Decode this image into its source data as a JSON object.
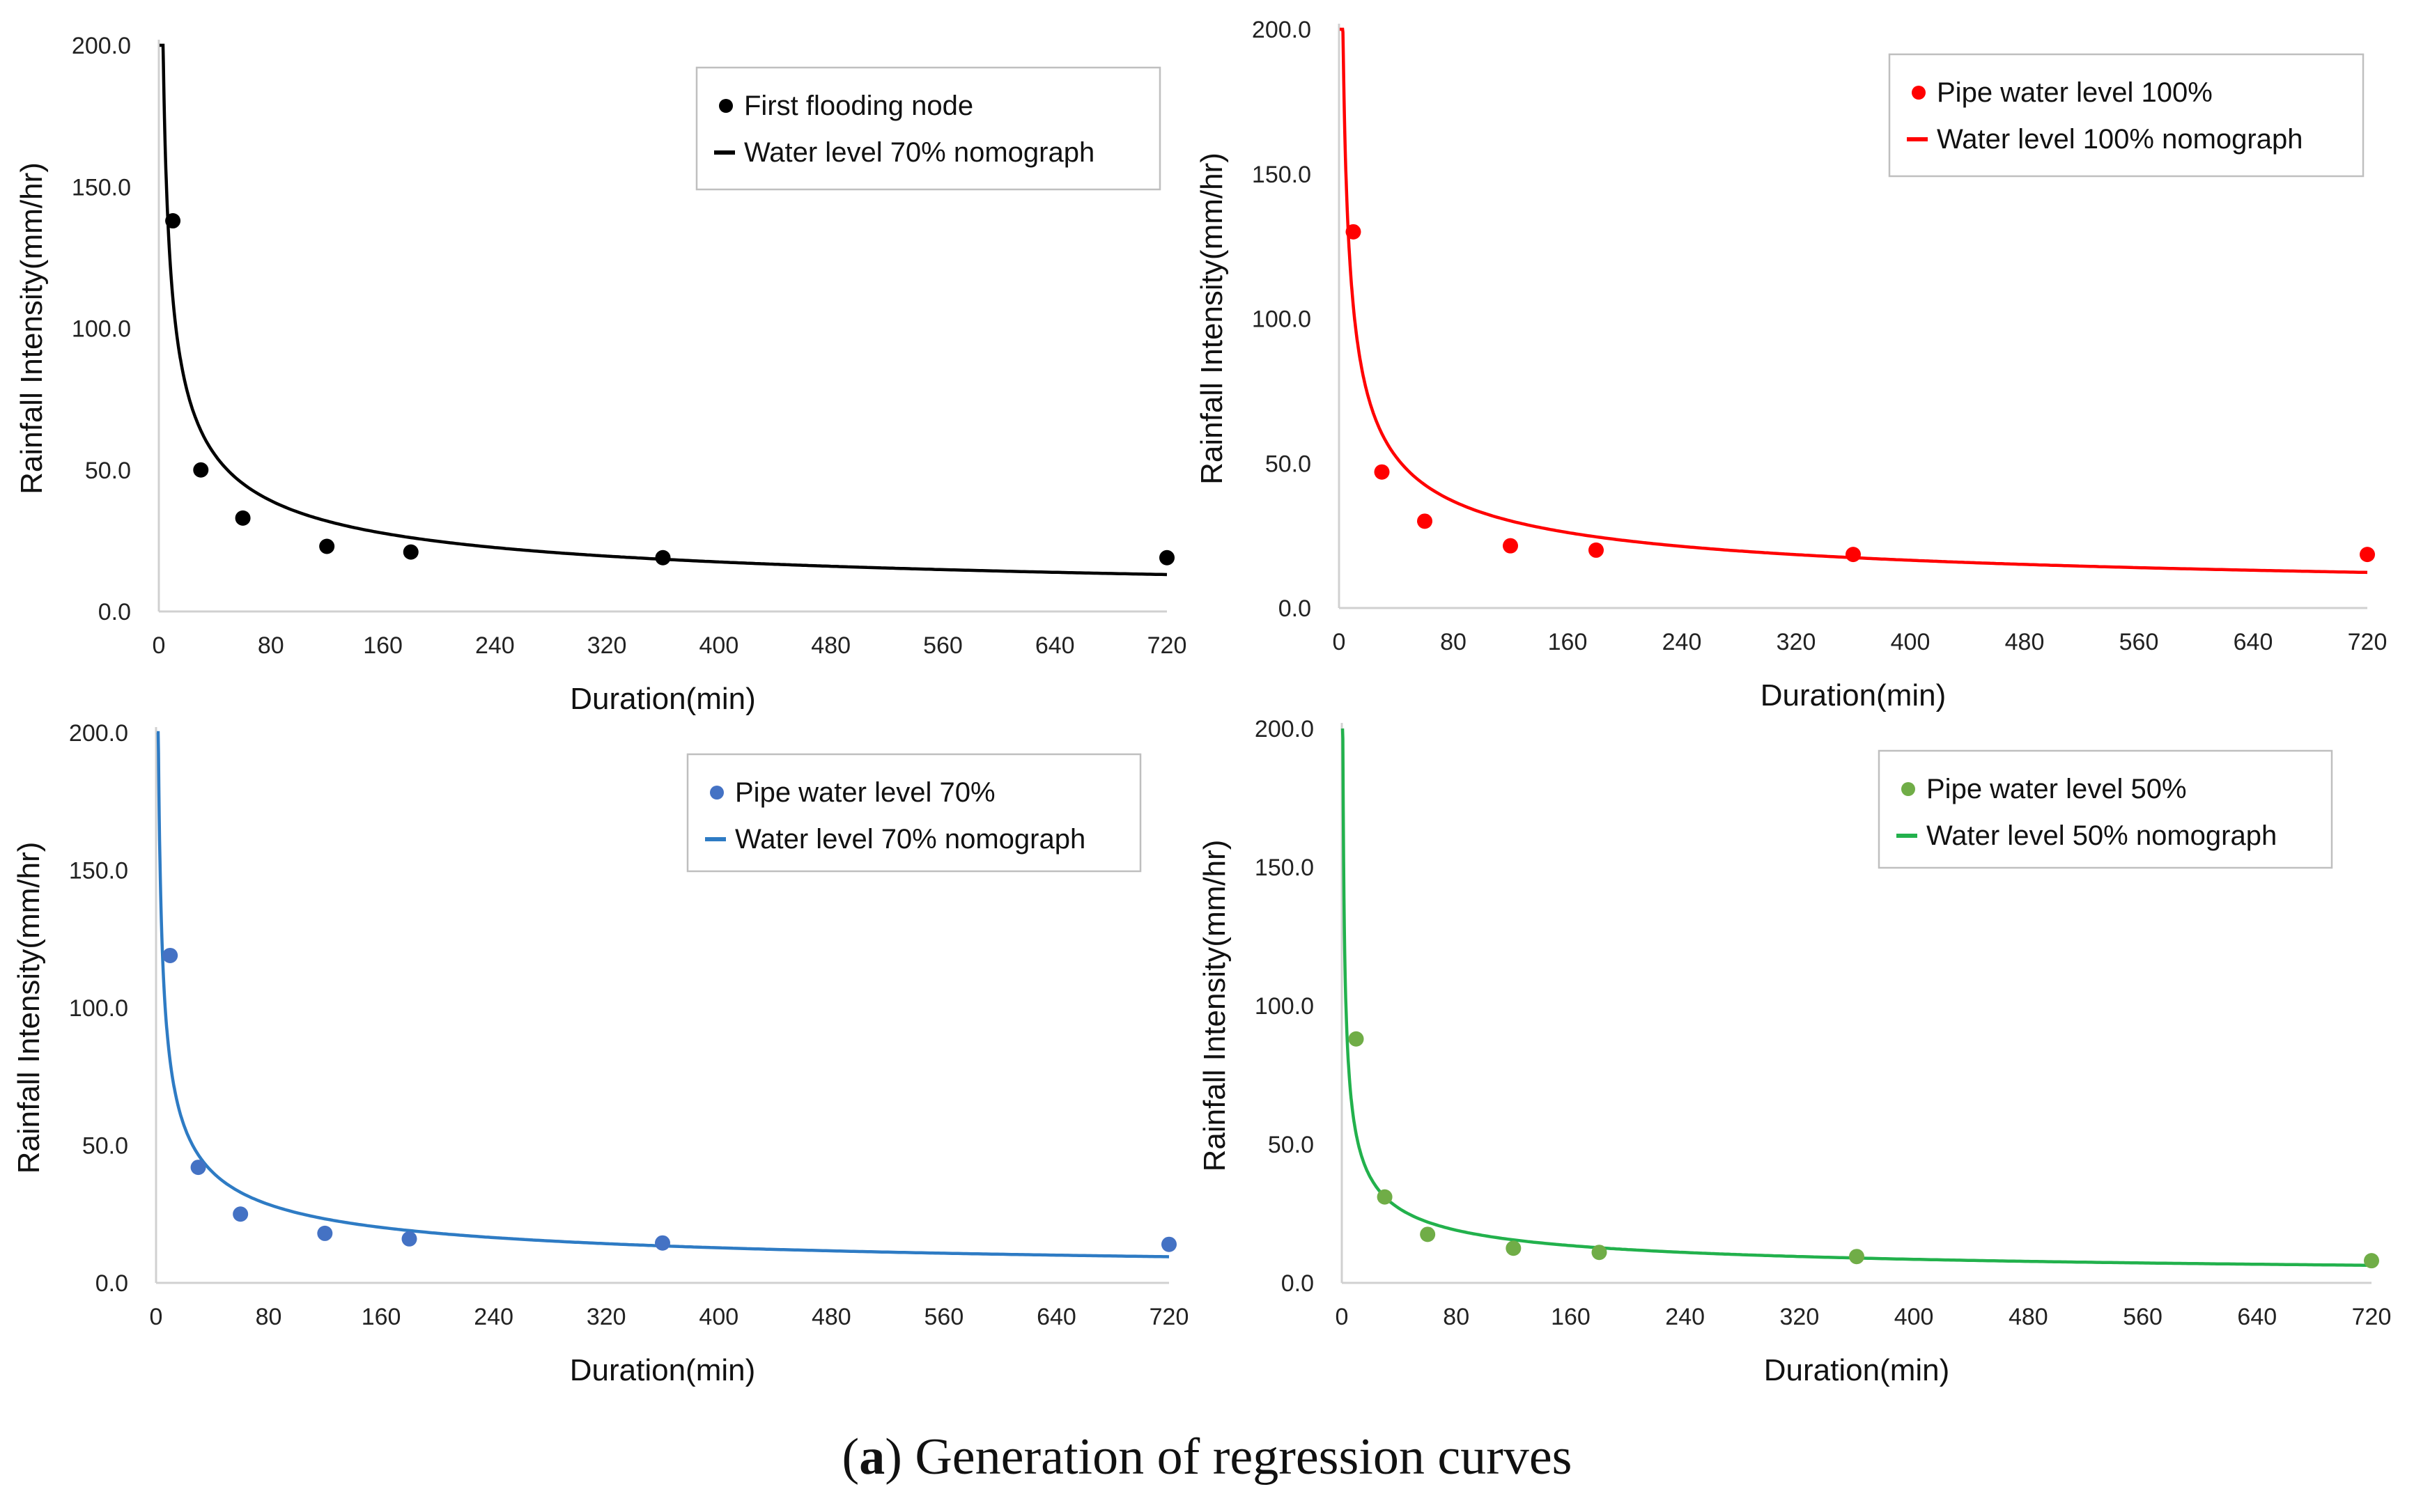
{
  "figure": {
    "caption_prefix": "(",
    "caption_letter": "a",
    "caption_suffix": ") Generation of regression curves"
  },
  "chart_data": [
    {
      "type": "scatter+line",
      "color": "#000000",
      "xlabel": "Duration(min)",
      "ylabel": "Rainfall Intensity(mm/hr)",
      "xlim": [
        0,
        720
      ],
      "ylim": [
        0,
        200
      ],
      "xticks": [
        0,
        80,
        160,
        240,
        320,
        400,
        480,
        560,
        640,
        720
      ],
      "yticks": [
        "0.0",
        "50.0",
        "100.0",
        "150.0",
        "200.0"
      ],
      "grid": false,
      "legend_position": "top-right",
      "points_label": "First flooding node",
      "curve_label": "Water level 70% nomograph",
      "points": {
        "x": [
          10,
          30,
          60,
          120,
          180,
          360,
          720
        ],
        "y": [
          138,
          50,
          33,
          23,
          21,
          19,
          19
        ]
      },
      "curve": {
        "a": 350,
        "b": 0.5
      }
    },
    {
      "type": "scatter+line",
      "color": "#ff0000",
      "xlabel": "Duration(min)",
      "ylabel": "Rainfall Intensity(mm/hr)",
      "xlim": [
        0,
        720
      ],
      "ylim": [
        0,
        200
      ],
      "xticks": [
        0,
        80,
        160,
        240,
        320,
        400,
        480,
        560,
        640,
        720
      ],
      "yticks": [
        "0.0",
        "50.0",
        "100.0",
        "150.0",
        "200.0"
      ],
      "grid": false,
      "legend_position": "top-right",
      "points_label": "Pipe water level 100%",
      "curve_label": "Water level 100% nomograph",
      "points": {
        "x": [
          10,
          30,
          60,
          120,
          180,
          360,
          720
        ],
        "y": [
          130,
          47,
          30,
          21.5,
          20,
          18.5,
          18.5
        ]
      },
      "curve": {
        "a": 330,
        "b": 0.5
      }
    },
    {
      "type": "scatter+line",
      "color": "#2e7bc4",
      "point_color": "#4472c4",
      "xlabel": "Duration(min)",
      "ylabel": "Rainfall Intensity(mm/hr)",
      "xlim": [
        0,
        720
      ],
      "ylim": [
        0,
        200
      ],
      "xticks": [
        0,
        80,
        160,
        240,
        320,
        400,
        480,
        560,
        640,
        720
      ],
      "yticks": [
        "0.0",
        "50.0",
        "100.0",
        "150.0",
        "200.0"
      ],
      "grid": false,
      "legend_position": "top-right",
      "points_label": "Pipe water level 70%",
      "curve_label": "Water level 70% nomograph",
      "points": {
        "x": [
          10,
          30,
          60,
          120,
          180,
          360,
          720
        ],
        "y": [
          119,
          42,
          25,
          18,
          16,
          14.5,
          14
        ]
      },
      "curve": {
        "a": 255,
        "b": 0.5
      }
    },
    {
      "type": "scatter+line",
      "color": "#22b14c",
      "point_color": "#70ad47",
      "xlabel": "Duration(min)",
      "ylabel": "Rainfall Intensity(mm/hr)",
      "xlim": [
        0,
        720
      ],
      "ylim": [
        0,
        200
      ],
      "xticks": [
        0,
        80,
        160,
        240,
        320,
        400,
        480,
        560,
        640,
        720
      ],
      "yticks": [
        "0.0",
        "50.0",
        "100.0",
        "150.0",
        "200.0"
      ],
      "grid": false,
      "legend_position": "top-right",
      "points_label": "Pipe water level 50%",
      "curve_label": "Water level 50% nomograph",
      "points": {
        "x": [
          10,
          30,
          60,
          120,
          180,
          360,
          720
        ],
        "y": [
          88,
          31,
          17.5,
          12.5,
          11,
          9.5,
          8
        ]
      },
      "curve": {
        "a": 170,
        "b": 0.5
      }
    }
  ]
}
